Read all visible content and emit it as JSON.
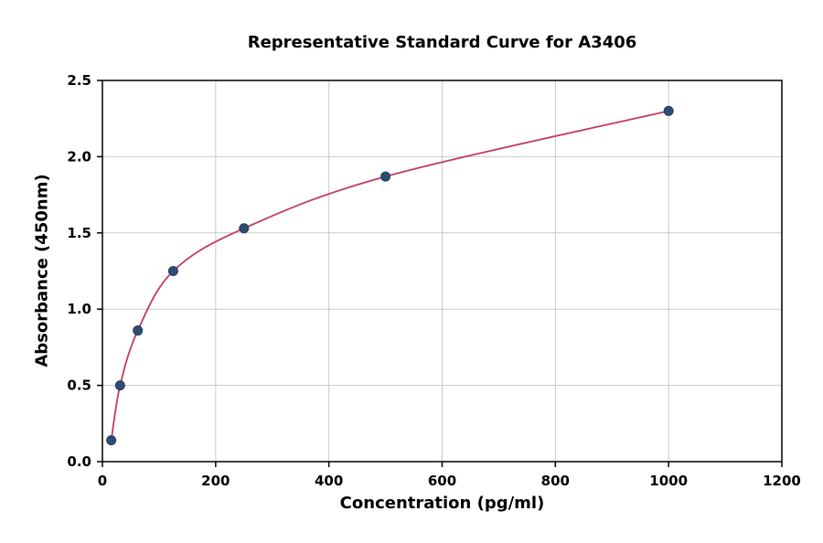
{
  "chart_data": {
    "type": "scatter",
    "title": "Representative Standard Curve for A3406",
    "xlabel": "Concentration (pg/ml)",
    "ylabel": "Absorbance (450nm)",
    "xlim": [
      0,
      1200
    ],
    "ylim": [
      0,
      2.5
    ],
    "xticks": [
      0,
      200,
      400,
      600,
      800,
      1000,
      1200
    ],
    "xtick_labels": [
      "0",
      "200",
      "400",
      "600",
      "800",
      "1000",
      "1200"
    ],
    "yticks": [
      0,
      0.5,
      1.0,
      1.5,
      2.0,
      2.5
    ],
    "ytick_labels": [
      "0.0",
      "0.5",
      "1.0",
      "1.5",
      "2.0",
      "2.5"
    ],
    "grid": true,
    "legend": "none",
    "series": [
      {
        "name": "standard-points",
        "type": "scatter",
        "color": "#2e4d72",
        "edge_color": "#223c5a",
        "x": [
          15.6,
          31.25,
          62.5,
          125,
          250,
          500,
          1000
        ],
        "y": [
          0.14,
          0.5,
          0.86,
          1.25,
          1.53,
          1.87,
          2.3
        ]
      },
      {
        "name": "fitted-curve",
        "type": "line",
        "color": "#c23b63"
      }
    ],
    "grid_color": "#c9c9c9",
    "axis_color": "#000000"
  }
}
